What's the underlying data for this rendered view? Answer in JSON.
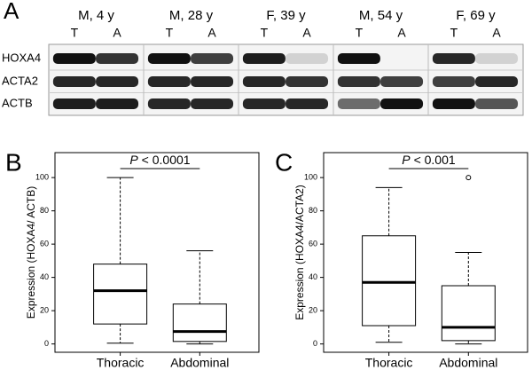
{
  "blot": {
    "panel": "A",
    "groups": [
      "M, 4 y",
      "M, 28 y",
      "F, 39 y",
      "M, 54 y",
      "F, 69 y"
    ],
    "lanes": [
      "T",
      "A"
    ],
    "rows": [
      "HOXA4",
      "ACTA2",
      "ACTB"
    ]
  },
  "chart_data": [
    {
      "type": "box",
      "panel": "B",
      "y_label": "Expression (HOXA4/ ACTB)",
      "annotation": {
        "italic": "P",
        "text": "< 0.0001"
      },
      "categories": [
        "Thoracic",
        "Abdominal"
      ],
      "boxes": [
        {
          "min": 0.5,
          "q1": 12,
          "median": 32,
          "q3": 48,
          "max": 100,
          "outliers": []
        },
        {
          "min": 0,
          "q1": 1.5,
          "median": 7.5,
          "q3": 24,
          "max": 56,
          "outliers": []
        }
      ],
      "ylim": [
        -5,
        115
      ],
      "yticks": [
        0,
        20,
        40,
        60,
        80,
        100
      ]
    },
    {
      "type": "box",
      "panel": "C",
      "y_label": "Expression (HOXA4/ACTA2)",
      "annotation": {
        "italic": "P",
        "text": "< 0.001"
      },
      "categories": [
        "Thoracic",
        "Abdominal"
      ],
      "boxes": [
        {
          "min": 1,
          "q1": 11,
          "median": 37,
          "q3": 65,
          "max": 94,
          "outliers": []
        },
        {
          "min": 0,
          "q1": 2,
          "median": 10,
          "q3": 35,
          "max": 55,
          "outliers": [
            100
          ]
        }
      ],
      "ylim": [
        -5,
        115
      ],
      "yticks": [
        0,
        20,
        40,
        60,
        80,
        100
      ]
    }
  ]
}
